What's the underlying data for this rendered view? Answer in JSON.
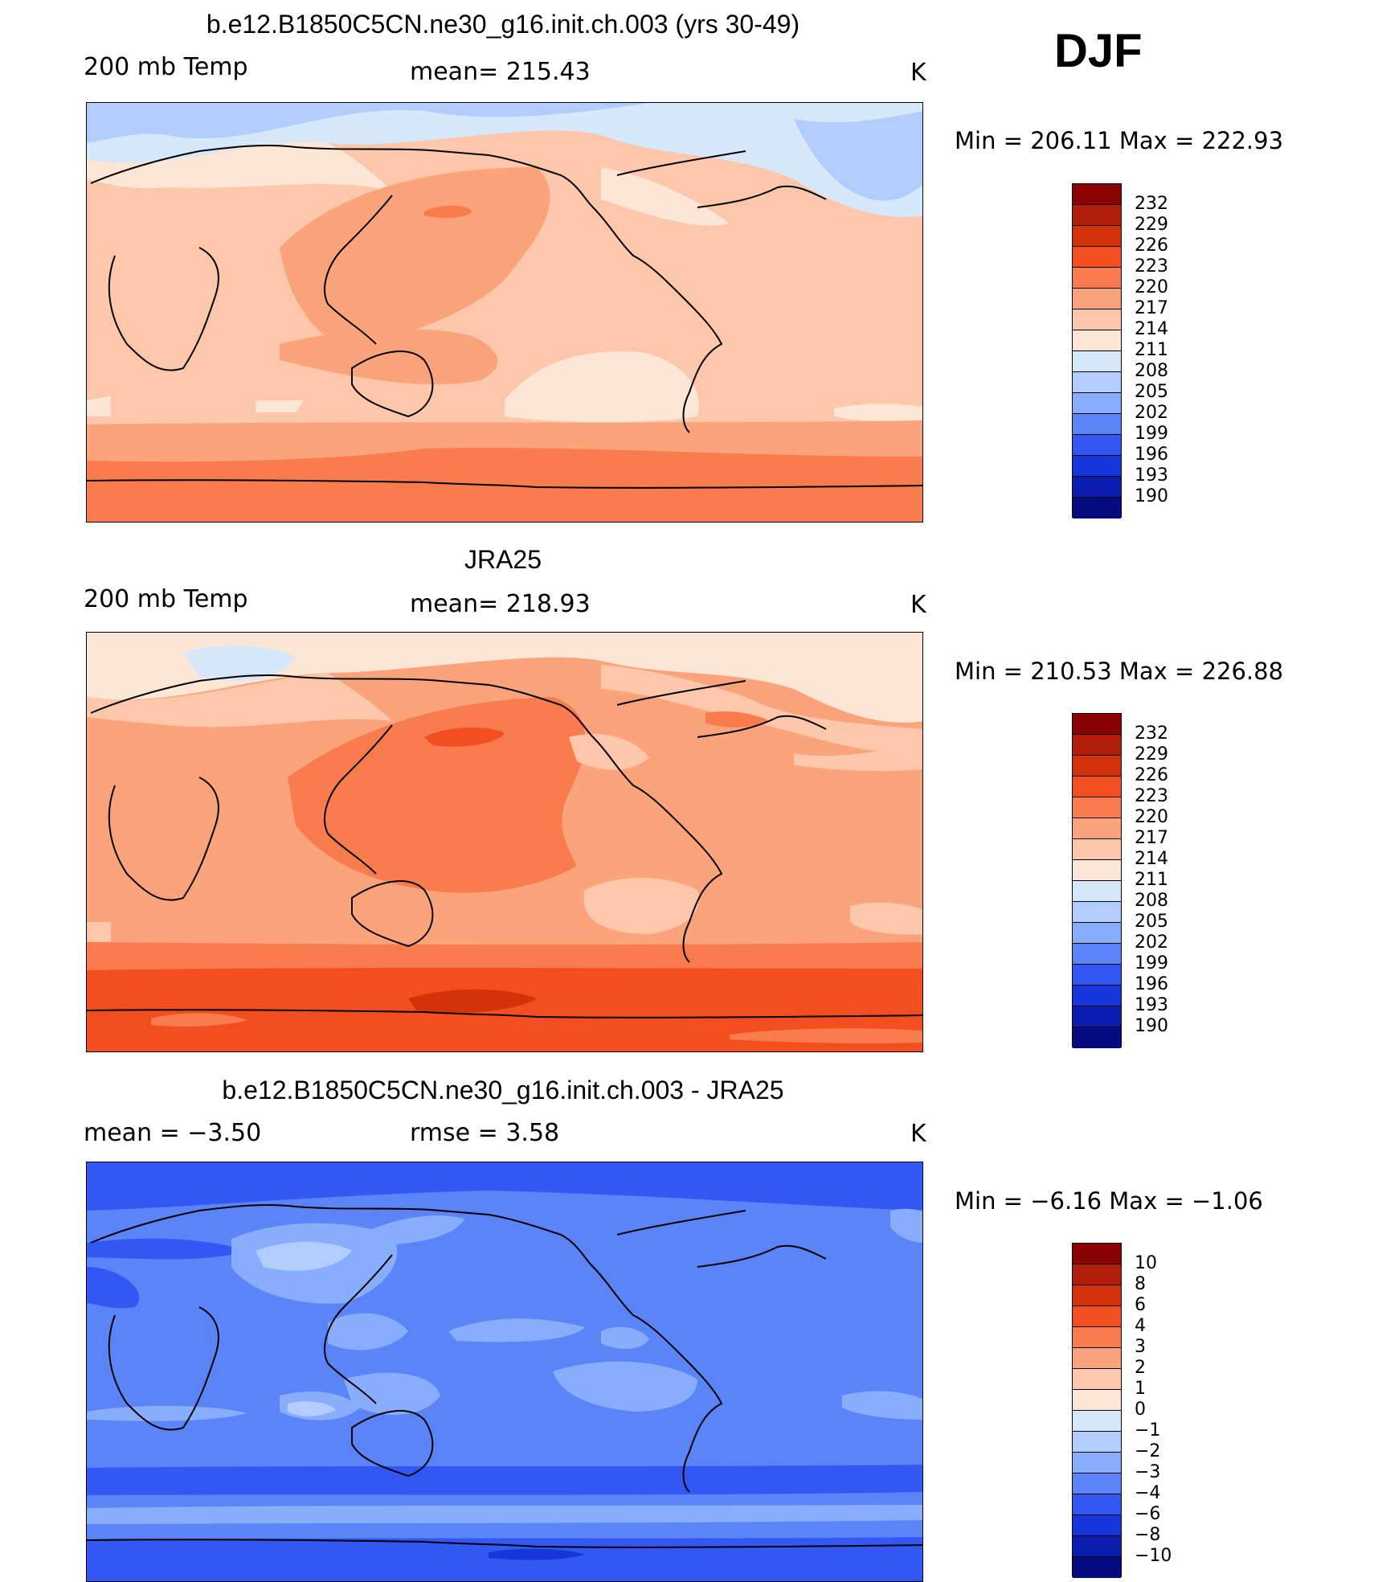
{
  "season": "DJF",
  "panels": [
    {
      "title": "b.e12.B1850C5CN.ne30_g16.init.ch.003 (yrs 30-49)",
      "left_label": "200 mb Temp",
      "center_label": "mean=  215.43",
      "units": "K",
      "minmax": "Min  =  206.11  Max  =  222.93",
      "colorbar_levels": [
        "232",
        "229",
        "226",
        "223",
        "220",
        "217",
        "214",
        "211",
        "208",
        "205",
        "202",
        "199",
        "196",
        "193",
        "190"
      ],
      "colorbar_colors": [
        "#8b0000",
        "#b21d0a",
        "#d43208",
        "#f24e1f",
        "#f87c4d",
        "#fba37a",
        "#fcc7ab",
        "#fde6d5",
        "#d6e8fc",
        "#b0cdfc",
        "#88adfb",
        "#5a84f7",
        "#3158f2",
        "#1736d9",
        "#0a1db0",
        "#050b80"
      ]
    },
    {
      "title": "JRA25",
      "left_label": "200 mb Temp",
      "center_label": "mean=  218.93",
      "units": "K",
      "minmax": "Min  =  210.53  Max  =  226.88",
      "colorbar_levels": [
        "232",
        "229",
        "226",
        "223",
        "220",
        "217",
        "214",
        "211",
        "208",
        "205",
        "202",
        "199",
        "196",
        "193",
        "190"
      ],
      "colorbar_colors": [
        "#8b0000",
        "#b21d0a",
        "#d43208",
        "#f24e1f",
        "#f87c4d",
        "#fba37a",
        "#fcc7ab",
        "#fde6d5",
        "#d6e8fc",
        "#b0cdfc",
        "#88adfb",
        "#5a84f7",
        "#3158f2",
        "#1736d9",
        "#0a1db0",
        "#050b80"
      ]
    },
    {
      "title": "b.e12.B1850C5CN.ne30_g16.init.ch.003 - JRA25",
      "left_label": "mean  =    −3.50",
      "center_label": "rmse  =     3.58",
      "units": "K",
      "minmax": "Min  =    −6.16  Max  =    −1.06",
      "colorbar_levels": [
        "10",
        "8",
        "6",
        "4",
        "3",
        "2",
        "1",
        "0",
        "−1",
        "−2",
        "−3",
        "−4",
        "−6",
        "−8",
        "−10"
      ],
      "colorbar_colors": [
        "#8b0000",
        "#b21d0a",
        "#d43208",
        "#f24e1f",
        "#f87c4d",
        "#fba37a",
        "#fcc7ab",
        "#fde6d5",
        "#d6e8fc",
        "#b0cdfc",
        "#88adfb",
        "#5a84f7",
        "#3158f2",
        "#1736d9",
        "#0a1db0",
        "#050b80"
      ]
    }
  ]
}
